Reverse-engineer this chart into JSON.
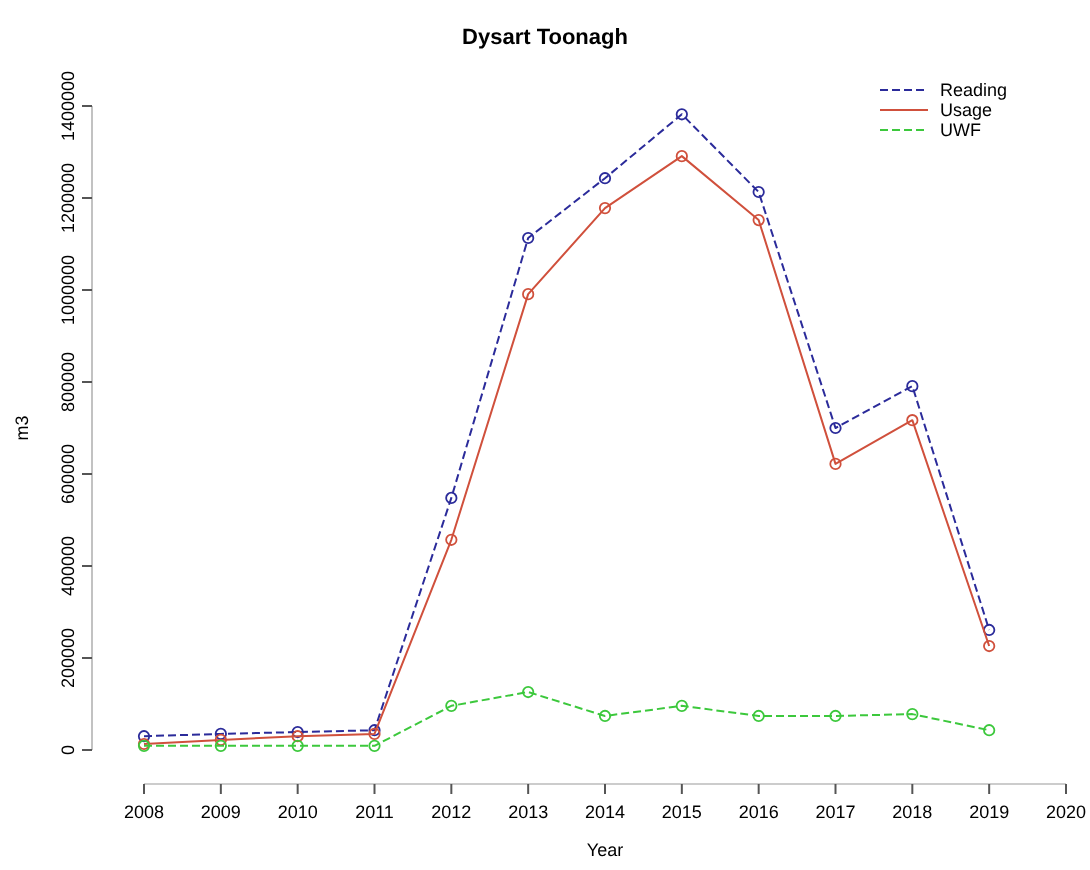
{
  "chart_data": {
    "type": "line",
    "title": "Dysart Toonagh",
    "xlabel": "Year",
    "ylabel": "m3",
    "x": [
      2008,
      2009,
      2010,
      2011,
      2012,
      2013,
      2014,
      2015,
      2016,
      2017,
      2018,
      2019
    ],
    "xlim": [
      2008,
      2020
    ],
    "xticks": [
      2008,
      2009,
      2010,
      2011,
      2012,
      2013,
      2014,
      2015,
      2016,
      2017,
      2018,
      2019,
      2020
    ],
    "ylim": [
      0,
      1400000
    ],
    "yticks": [
      0,
      200000,
      400000,
      600000,
      800000,
      1000000,
      1200000,
      1400000
    ],
    "marker": "circle",
    "legend": "top right",
    "grid": false,
    "series": [
      {
        "name": "Reading",
        "color": "#2b2b9a",
        "line_style": "dashed",
        "values": [
          30000,
          35000,
          39000,
          43000,
          548000,
          1113000,
          1243000,
          1382000,
          1213000,
          700000,
          791000,
          261000
        ]
      },
      {
        "name": "Usage",
        "color": "#d0503c",
        "line_style": "solid",
        "values": [
          13000,
          22000,
          30000,
          35000,
          457000,
          991000,
          1178000,
          1291000,
          1152000,
          622000,
          717000,
          226000
        ]
      },
      {
        "name": "UWF",
        "color": "#3cc83c",
        "line_style": "dashed",
        "values": [
          9000,
          9000,
          9000,
          9000,
          96000,
          126000,
          74000,
          96000,
          74000,
          74000,
          78000,
          43000
        ]
      }
    ]
  }
}
